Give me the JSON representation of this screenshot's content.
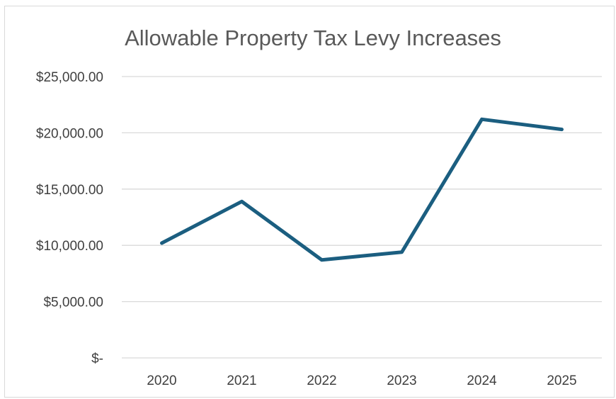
{
  "chart_data": {
    "type": "line",
    "title": "Allowable Property Tax Levy Increases",
    "xlabel": "",
    "ylabel": "",
    "categories": [
      "2020",
      "2021",
      "2022",
      "2023",
      "2024",
      "2025"
    ],
    "series": [
      {
        "values": [
          10200,
          13900,
          8700,
          9400,
          21200,
          20300
        ]
      }
    ],
    "ylim": [
      0,
      25000
    ],
    "y_ticks": [
      0,
      5000,
      10000,
      15000,
      20000,
      25000
    ],
    "y_tick_labels": [
      "$-",
      "$5,000.00",
      "$10,000.00",
      "$15,000.00",
      "$20,000.00",
      "$25,000.00"
    ],
    "grid": true,
    "legend": "none",
    "line_color": "#1b5e80"
  }
}
